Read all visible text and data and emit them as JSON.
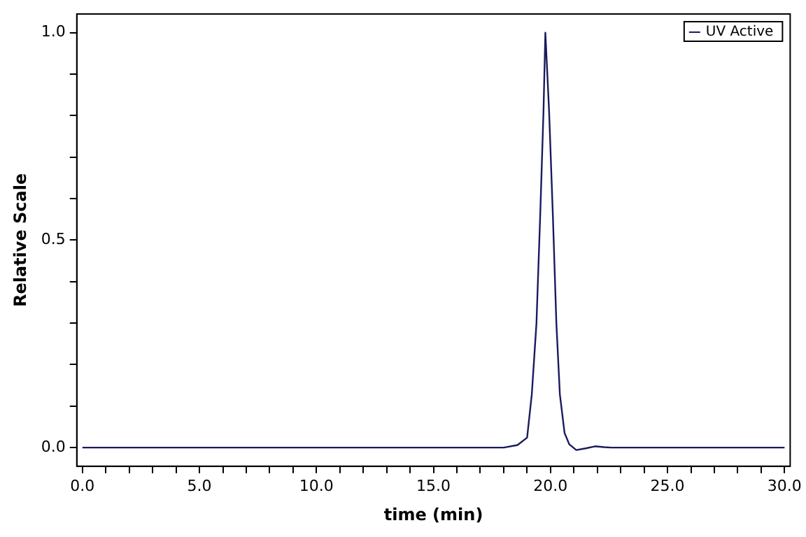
{
  "chart_data": {
    "type": "line",
    "xlabel": "time (min)",
    "ylabel": "Relative Scale",
    "xlim": [
      -0.24,
      30.24
    ],
    "ylim": [
      -0.045,
      1.045
    ],
    "xticks": [
      {
        "value": 0,
        "label": "0.0"
      },
      {
        "value": 1,
        "label": null
      },
      {
        "value": 2,
        "label": null
      },
      {
        "value": 3,
        "label": null
      },
      {
        "value": 4,
        "label": null
      },
      {
        "value": 5,
        "label": "5.0"
      },
      {
        "value": 6,
        "label": null
      },
      {
        "value": 7,
        "label": null
      },
      {
        "value": 8,
        "label": null
      },
      {
        "value": 9,
        "label": null
      },
      {
        "value": 10,
        "label": "10.0"
      },
      {
        "value": 11,
        "label": null
      },
      {
        "value": 12,
        "label": null
      },
      {
        "value": 13,
        "label": null
      },
      {
        "value": 14,
        "label": null
      },
      {
        "value": 15,
        "label": "15.0"
      },
      {
        "value": 16,
        "label": null
      },
      {
        "value": 17,
        "label": null
      },
      {
        "value": 18,
        "label": null
      },
      {
        "value": 19,
        "label": null
      },
      {
        "value": 20,
        "label": "20.0"
      },
      {
        "value": 21,
        "label": null
      },
      {
        "value": 22,
        "label": null
      },
      {
        "value": 23,
        "label": null
      },
      {
        "value": 24,
        "label": null
      },
      {
        "value": 25,
        "label": "25.0"
      },
      {
        "value": 26,
        "label": null
      },
      {
        "value": 27,
        "label": null
      },
      {
        "value": 28,
        "label": null
      },
      {
        "value": 29,
        "label": null
      },
      {
        "value": 30,
        "label": "30.0"
      }
    ],
    "yticks": [
      {
        "value": 0,
        "label": "0.0"
      },
      {
        "value": 0.1,
        "label": null
      },
      {
        "value": 0.2,
        "label": null
      },
      {
        "value": 0.3,
        "label": null
      },
      {
        "value": 0.4,
        "label": null
      },
      {
        "value": 0.5,
        "label": "0.5"
      },
      {
        "value": 0.6,
        "label": null
      },
      {
        "value": 0.7,
        "label": null
      },
      {
        "value": 0.8,
        "label": null
      },
      {
        "value": 0.9,
        "label": null
      },
      {
        "value": 1,
        "label": "1.0"
      }
    ],
    "grid": false,
    "legend": "top right",
    "marker": "none",
    "line_style": "solid",
    "series": [
      {
        "name": "UV Active",
        "color": "#1a1a5e",
        "x": [
          0,
          10,
          18.0,
          18.59,
          19.0,
          19.2,
          19.4,
          19.56,
          19.7,
          19.78,
          19.94,
          20.1,
          20.25,
          20.4,
          20.6,
          20.8,
          21.1,
          21.5,
          21.9,
          22.3,
          22.6,
          23.7,
          30
        ],
        "values": [
          0,
          0,
          0,
          0.006,
          0.024,
          0.128,
          0.3,
          0.56,
          0.81,
          1.0,
          0.81,
          0.56,
          0.3,
          0.128,
          0.035,
          0.008,
          -0.006,
          -0.002,
          0.003,
          0.001,
          0,
          0,
          0
        ]
      }
    ]
  }
}
